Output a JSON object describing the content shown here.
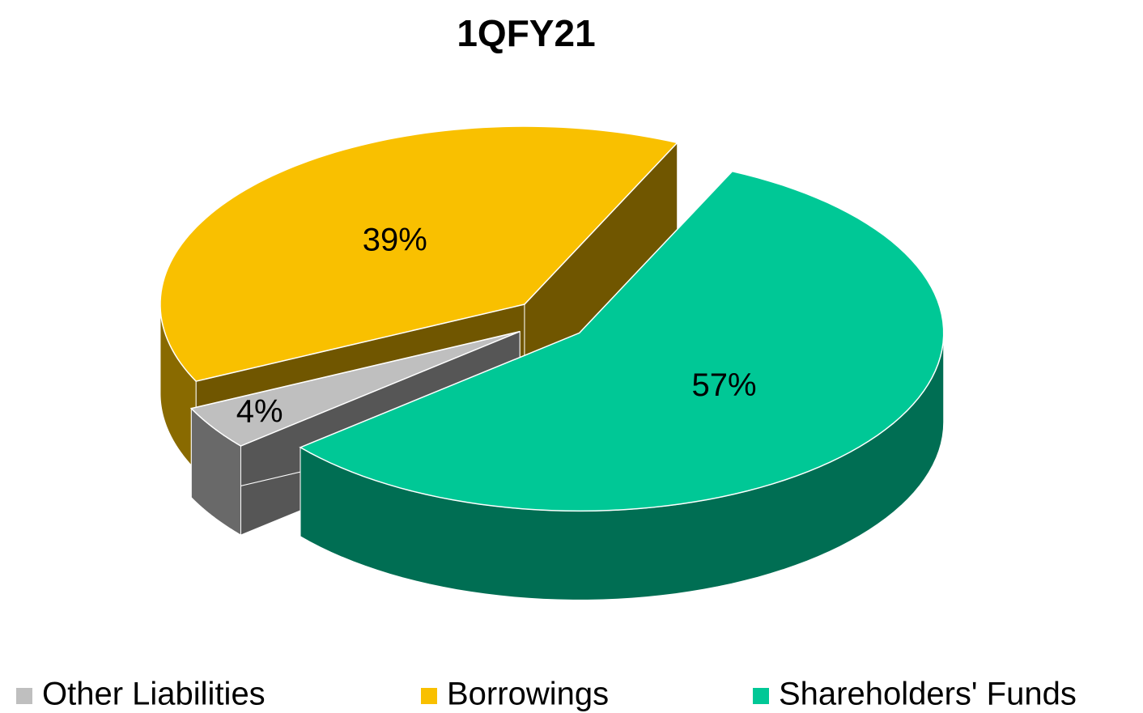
{
  "chart_data": {
    "type": "pie",
    "title": "1QFY21",
    "categories": [
      "Other Liabilities",
      "Borrowings",
      "Shareholders' Funds"
    ],
    "values": [
      4,
      39,
      57
    ],
    "value_labels": [
      "4%",
      "39%",
      "57%"
    ],
    "colors": [
      "#bfbfbf",
      "#f9c000",
      "#00c896"
    ],
    "legend": "bottom"
  }
}
